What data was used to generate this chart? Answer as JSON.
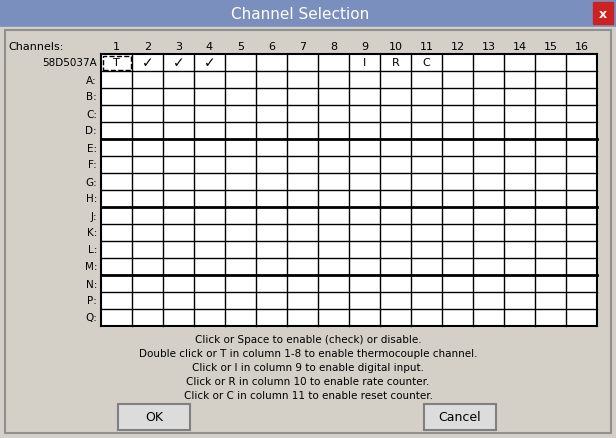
{
  "title": "Channel Selection",
  "title_bg": "#7B8FBF",
  "title_fg": "#FFFFFF",
  "close_btn_color": "#CC2222",
  "body_bg": "#D4D0C8",
  "grid_bg": "#FFFFFF",
  "channel_numbers": [
    1,
    2,
    3,
    4,
    5,
    6,
    7,
    8,
    9,
    10,
    11,
    12,
    13,
    14,
    15,
    16
  ],
  "header_label": "Channels:",
  "device_label": "58D5037A",
  "grid_row_labels": [
    "58D5037A",
    "A",
    "B",
    "C",
    "D",
    "E",
    "F",
    "G",
    "H",
    "J",
    "K",
    "L",
    "M",
    "N",
    "P",
    "Q"
  ],
  "instructions": [
    "Click or Space to enable (check) or disable.",
    "Double click or T in column 1-8 to enable thermocouple channel.",
    "Click or I in column 9 to enable digital input.",
    "Click or R in column 10 to enable rate counter.",
    "Click or C in column 11 to enable reset counter."
  ],
  "ok_label": "OK",
  "cancel_label": "Cancel"
}
